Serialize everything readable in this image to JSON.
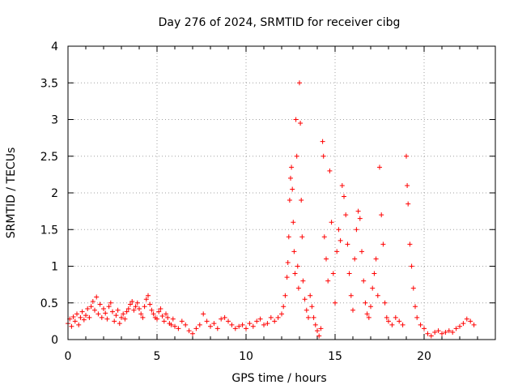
{
  "chart_data": {
    "type": "scatter",
    "title": "Day 276 of 2024, SRMTID for receiver cibg",
    "xlabel": "GPS time / hours",
    "ylabel": "SRMTID / TECUs",
    "xlim": [
      0,
      24
    ],
    "ylim": [
      0,
      4
    ],
    "xticks": [
      0,
      5,
      10,
      15,
      20
    ],
    "xtick_labels": [
      "0",
      "5",
      "10",
      "15",
      "20"
    ],
    "yticks": [
      0,
      0.5,
      1,
      1.5,
      2,
      2.5,
      3,
      3.5,
      4
    ],
    "ytick_labels": [
      "0",
      "0.5",
      "1",
      "1.5",
      "2",
      "2.5",
      "3",
      "3.5",
      "4"
    ],
    "grid": true,
    "marker": "+",
    "series": [
      {
        "name": "cibg",
        "color": "#ff0000",
        "points": [
          [
            0.0,
            0.22
          ],
          [
            0.1,
            0.28
          ],
          [
            0.2,
            0.18
          ],
          [
            0.3,
            0.31
          ],
          [
            0.4,
            0.25
          ],
          [
            0.5,
            0.35
          ],
          [
            0.6,
            0.2
          ],
          [
            0.7,
            0.3
          ],
          [
            0.8,
            0.38
          ],
          [
            0.9,
            0.27
          ],
          [
            1.0,
            0.33
          ],
          [
            1.1,
            0.42
          ],
          [
            1.2,
            0.3
          ],
          [
            1.3,
            0.45
          ],
          [
            1.4,
            0.52
          ],
          [
            1.5,
            0.4
          ],
          [
            1.6,
            0.58
          ],
          [
            1.7,
            0.35
          ],
          [
            1.8,
            0.48
          ],
          [
            1.9,
            0.3
          ],
          [
            2.0,
            0.42
          ],
          [
            2.1,
            0.36
          ],
          [
            2.2,
            0.28
          ],
          [
            2.3,
            0.45
          ],
          [
            2.4,
            0.5
          ],
          [
            2.5,
            0.38
          ],
          [
            2.6,
            0.25
          ],
          [
            2.7,
            0.33
          ],
          [
            2.8,
            0.4
          ],
          [
            2.9,
            0.22
          ],
          [
            3.0,
            0.3
          ],
          [
            3.1,
            0.35
          ],
          [
            3.2,
            0.28
          ],
          [
            3.3,
            0.38
          ],
          [
            3.4,
            0.42
          ],
          [
            3.5,
            0.48
          ],
          [
            3.6,
            0.52
          ],
          [
            3.7,
            0.4
          ],
          [
            3.8,
            0.45
          ],
          [
            3.9,
            0.5
          ],
          [
            4.0,
            0.42
          ],
          [
            4.1,
            0.35
          ],
          [
            4.2,
            0.3
          ],
          [
            4.3,
            0.45
          ],
          [
            4.4,
            0.55
          ],
          [
            4.5,
            0.6
          ],
          [
            4.6,
            0.48
          ],
          [
            4.7,
            0.4
          ],
          [
            4.8,
            0.35
          ],
          [
            4.9,
            0.3
          ],
          [
            5.0,
            0.28
          ],
          [
            5.1,
            0.38
          ],
          [
            5.2,
            0.42
          ],
          [
            5.3,
            0.32
          ],
          [
            5.4,
            0.25
          ],
          [
            5.5,
            0.35
          ],
          [
            5.6,
            0.3
          ],
          [
            5.7,
            0.22
          ],
          [
            5.8,
            0.2
          ],
          [
            5.9,
            0.28
          ],
          [
            6.0,
            0.18
          ],
          [
            6.2,
            0.15
          ],
          [
            6.4,
            0.25
          ],
          [
            6.6,
            0.2
          ],
          [
            6.8,
            0.12
          ],
          [
            7.0,
            0.08
          ],
          [
            7.2,
            0.15
          ],
          [
            7.4,
            0.2
          ],
          [
            7.6,
            0.35
          ],
          [
            7.8,
            0.25
          ],
          [
            8.0,
            0.18
          ],
          [
            8.2,
            0.22
          ],
          [
            8.4,
            0.15
          ],
          [
            8.6,
            0.28
          ],
          [
            8.8,
            0.3
          ],
          [
            9.0,
            0.25
          ],
          [
            9.2,
            0.2
          ],
          [
            9.4,
            0.15
          ],
          [
            9.6,
            0.18
          ],
          [
            9.8,
            0.2
          ],
          [
            10.0,
            0.15
          ],
          [
            10.2,
            0.22
          ],
          [
            10.4,
            0.18
          ],
          [
            10.6,
            0.25
          ],
          [
            10.8,
            0.28
          ],
          [
            11.0,
            0.2
          ],
          [
            11.2,
            0.22
          ],
          [
            11.4,
            0.3
          ],
          [
            11.6,
            0.25
          ],
          [
            11.8,
            0.3
          ],
          [
            12.0,
            0.35
          ],
          [
            12.1,
            0.45
          ],
          [
            12.2,
            0.6
          ],
          [
            12.3,
            0.85
          ],
          [
            12.35,
            1.05
          ],
          [
            12.4,
            1.4
          ],
          [
            12.45,
            1.9
          ],
          [
            12.5,
            2.2
          ],
          [
            12.55,
            2.35
          ],
          [
            12.6,
            2.05
          ],
          [
            12.65,
            1.6
          ],
          [
            12.7,
            1.2
          ],
          [
            12.75,
            0.9
          ],
          [
            12.8,
            3.0
          ],
          [
            12.85,
            2.5
          ],
          [
            12.9,
            1.0
          ],
          [
            12.95,
            0.7
          ],
          [
            13.0,
            3.5
          ],
          [
            13.05,
            2.95
          ],
          [
            13.1,
            1.9
          ],
          [
            13.15,
            1.4
          ],
          [
            13.2,
            0.8
          ],
          [
            13.3,
            0.55
          ],
          [
            13.4,
            0.4
          ],
          [
            13.5,
            0.3
          ],
          [
            13.6,
            0.6
          ],
          [
            13.7,
            0.45
          ],
          [
            13.8,
            0.3
          ],
          [
            13.9,
            0.2
          ],
          [
            14.0,
            0.12
          ],
          [
            14.1,
            0.05
          ],
          [
            14.2,
            0.15
          ],
          [
            14.3,
            2.7
          ],
          [
            14.35,
            2.5
          ],
          [
            14.4,
            1.4
          ],
          [
            14.5,
            1.1
          ],
          [
            14.6,
            0.8
          ],
          [
            14.7,
            2.3
          ],
          [
            14.8,
            1.6
          ],
          [
            14.9,
            0.9
          ],
          [
            15.0,
            0.5
          ],
          [
            15.1,
            1.2
          ],
          [
            15.2,
            1.5
          ],
          [
            15.3,
            1.35
          ],
          [
            15.4,
            2.1
          ],
          [
            15.5,
            1.95
          ],
          [
            15.6,
            1.7
          ],
          [
            15.7,
            1.3
          ],
          [
            15.8,
            0.9
          ],
          [
            15.9,
            0.6
          ],
          [
            16.0,
            0.4
          ],
          [
            16.1,
            1.1
          ],
          [
            16.2,
            1.5
          ],
          [
            16.3,
            1.75
          ],
          [
            16.4,
            1.65
          ],
          [
            16.5,
            1.2
          ],
          [
            16.6,
            0.8
          ],
          [
            16.7,
            0.5
          ],
          [
            16.8,
            0.35
          ],
          [
            16.9,
            0.3
          ],
          [
            17.0,
            0.45
          ],
          [
            17.1,
            0.7
          ],
          [
            17.2,
            0.9
          ],
          [
            17.3,
            1.1
          ],
          [
            17.4,
            0.6
          ],
          [
            17.5,
            2.35
          ],
          [
            17.6,
            1.7
          ],
          [
            17.7,
            1.3
          ],
          [
            17.8,
            0.5
          ],
          [
            17.9,
            0.3
          ],
          [
            18.0,
            0.25
          ],
          [
            18.2,
            0.2
          ],
          [
            18.4,
            0.3
          ],
          [
            18.6,
            0.25
          ],
          [
            18.8,
            0.2
          ],
          [
            19.0,
            2.5
          ],
          [
            19.05,
            2.1
          ],
          [
            19.1,
            1.85
          ],
          [
            19.2,
            1.3
          ],
          [
            19.3,
            1.0
          ],
          [
            19.4,
            0.7
          ],
          [
            19.5,
            0.45
          ],
          [
            19.6,
            0.3
          ],
          [
            19.8,
            0.2
          ],
          [
            20.0,
            0.15
          ],
          [
            20.2,
            0.08
          ],
          [
            20.4,
            0.05
          ],
          [
            20.6,
            0.1
          ],
          [
            20.8,
            0.12
          ],
          [
            21.0,
            0.08
          ],
          [
            21.2,
            0.1
          ],
          [
            21.4,
            0.12
          ],
          [
            21.6,
            0.1
          ],
          [
            21.8,
            0.15
          ],
          [
            22.0,
            0.18
          ],
          [
            22.2,
            0.22
          ],
          [
            22.4,
            0.28
          ],
          [
            22.6,
            0.25
          ],
          [
            22.8,
            0.2
          ]
        ]
      }
    ]
  }
}
